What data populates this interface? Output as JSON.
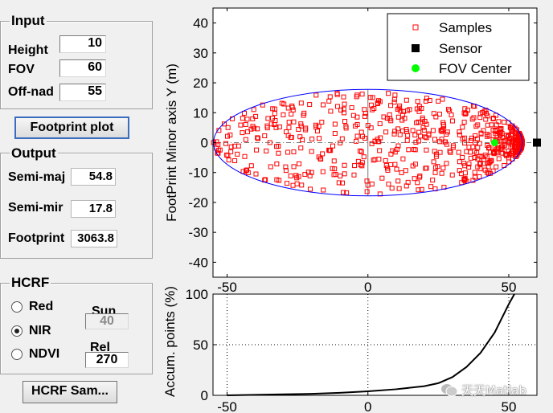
{
  "input_panel": {
    "title": "Input",
    "height_label": "Height",
    "height_value": "10",
    "fov_label": "FOV",
    "fov_value": "60",
    "offnadir_label": "Off-nad",
    "offnadir_value": "55"
  },
  "footprint_button": "Footprint plot",
  "output_panel": {
    "title": "Output",
    "semimajor_label": "Semi-maj",
    "semimajor_value": "54.8",
    "semiminor_label": "Semi-mir",
    "semiminor_value": "17.8",
    "footprint_label": "Footprint",
    "footprint_value": "3063.8"
  },
  "hcrf_panel": {
    "title": "HCRF",
    "radios": [
      {
        "label": "Red",
        "checked": false
      },
      {
        "label": "NIR",
        "checked": true
      },
      {
        "label": "NDVI",
        "checked": false
      }
    ],
    "sun_label": "Sun",
    "sun_value": "40",
    "rel_label": "Rel",
    "rel_value": "270"
  },
  "hcrf_button": "HCRF Sam...",
  "watermark": "天天Matlab",
  "colors": {
    "sample": "#ff0000",
    "ellipse": "#0000ff",
    "sensor": "#000000",
    "fov_center": "#00ff00"
  },
  "chart_data": [
    {
      "type": "scatter",
      "title": "",
      "xlabel": "",
      "ylabel": "FootPrint Minor axis Y (m)",
      "xlim": [
        -55,
        60
      ],
      "ylim": [
        -45,
        45
      ],
      "xticks": [
        -50,
        0,
        50
      ],
      "yticks": [
        -40,
        -30,
        -20,
        -10,
        0,
        10,
        20,
        30,
        40
      ],
      "ellipse": {
        "center": [
          0,
          0
        ],
        "semi_major": 54.8,
        "semi_minor": 17.8
      },
      "legend": [
        "Samples",
        "Sensor",
        "FOV Center"
      ],
      "legend_placement": "top-right",
      "sensor": [
        60,
        0
      ],
      "fov_center": [
        45,
        0
      ],
      "samples_note_points": 700
    },
    {
      "type": "line",
      "xlabel": "",
      "ylabel": "Accum. points (%)",
      "xlim": [
        -55,
        60
      ],
      "ylim": [
        0,
        100
      ],
      "xticks": [
        -50,
        0,
        50
      ],
      "yticks": [
        0,
        50,
        100
      ],
      "grid": true,
      "x": [
        -50,
        -40,
        -30,
        -20,
        -10,
        0,
        10,
        20,
        25,
        30,
        35,
        40,
        45,
        50,
        52
      ],
      "y": [
        0,
        0.5,
        1,
        1.5,
        2.5,
        4,
        6,
        9,
        12,
        18,
        28,
        42,
        62,
        90,
        100
      ]
    }
  ]
}
